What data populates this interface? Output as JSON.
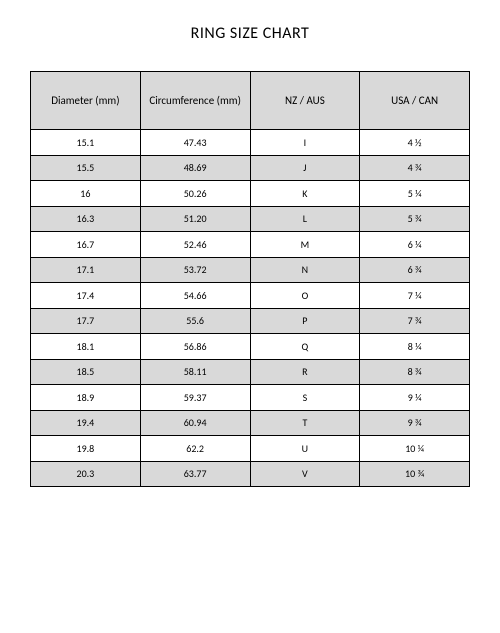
{
  "title": "RING SIZE CHART",
  "table": {
    "type": "table",
    "header_bg": "#d9d9d9",
    "row_alt_bg": "#d9d9d9",
    "border_color": "#000000",
    "background_color": "#ffffff",
    "title_fontsize": 16,
    "header_fontsize": 11,
    "cell_fontsize": 10,
    "columns": [
      "Diameter (mm)",
      "Circumference (mm)",
      "NZ / AUS",
      "USA / CAN"
    ],
    "rows": [
      [
        "15.1",
        "47.43",
        "I",
        "4 ½"
      ],
      [
        "15.5",
        "48.69",
        "J",
        "4 ¾"
      ],
      [
        "16",
        "50.26",
        "K",
        "5 ¼"
      ],
      [
        "16.3",
        "51.20",
        "L",
        "5 ¾"
      ],
      [
        "16.7",
        "52.46",
        "M",
        "6 ¼"
      ],
      [
        "17.1",
        "53.72",
        "N",
        "6 ¾"
      ],
      [
        "17.4",
        "54.66",
        "O",
        "7 ¼"
      ],
      [
        "17.7",
        "55.6",
        "P",
        "7 ¾"
      ],
      [
        "18.1",
        "56.86",
        "Q",
        "8 ¼"
      ],
      [
        "18.5",
        "58.11",
        "R",
        "8 ¾"
      ],
      [
        "18.9",
        "59.37",
        "S",
        "9 ¼"
      ],
      [
        "19.4",
        "60.94",
        "T",
        "9 ¾"
      ],
      [
        "19.8",
        "62.2",
        "U",
        "10 ¼"
      ],
      [
        "20.3",
        "63.77",
        "V",
        "10 ¾"
      ]
    ]
  }
}
